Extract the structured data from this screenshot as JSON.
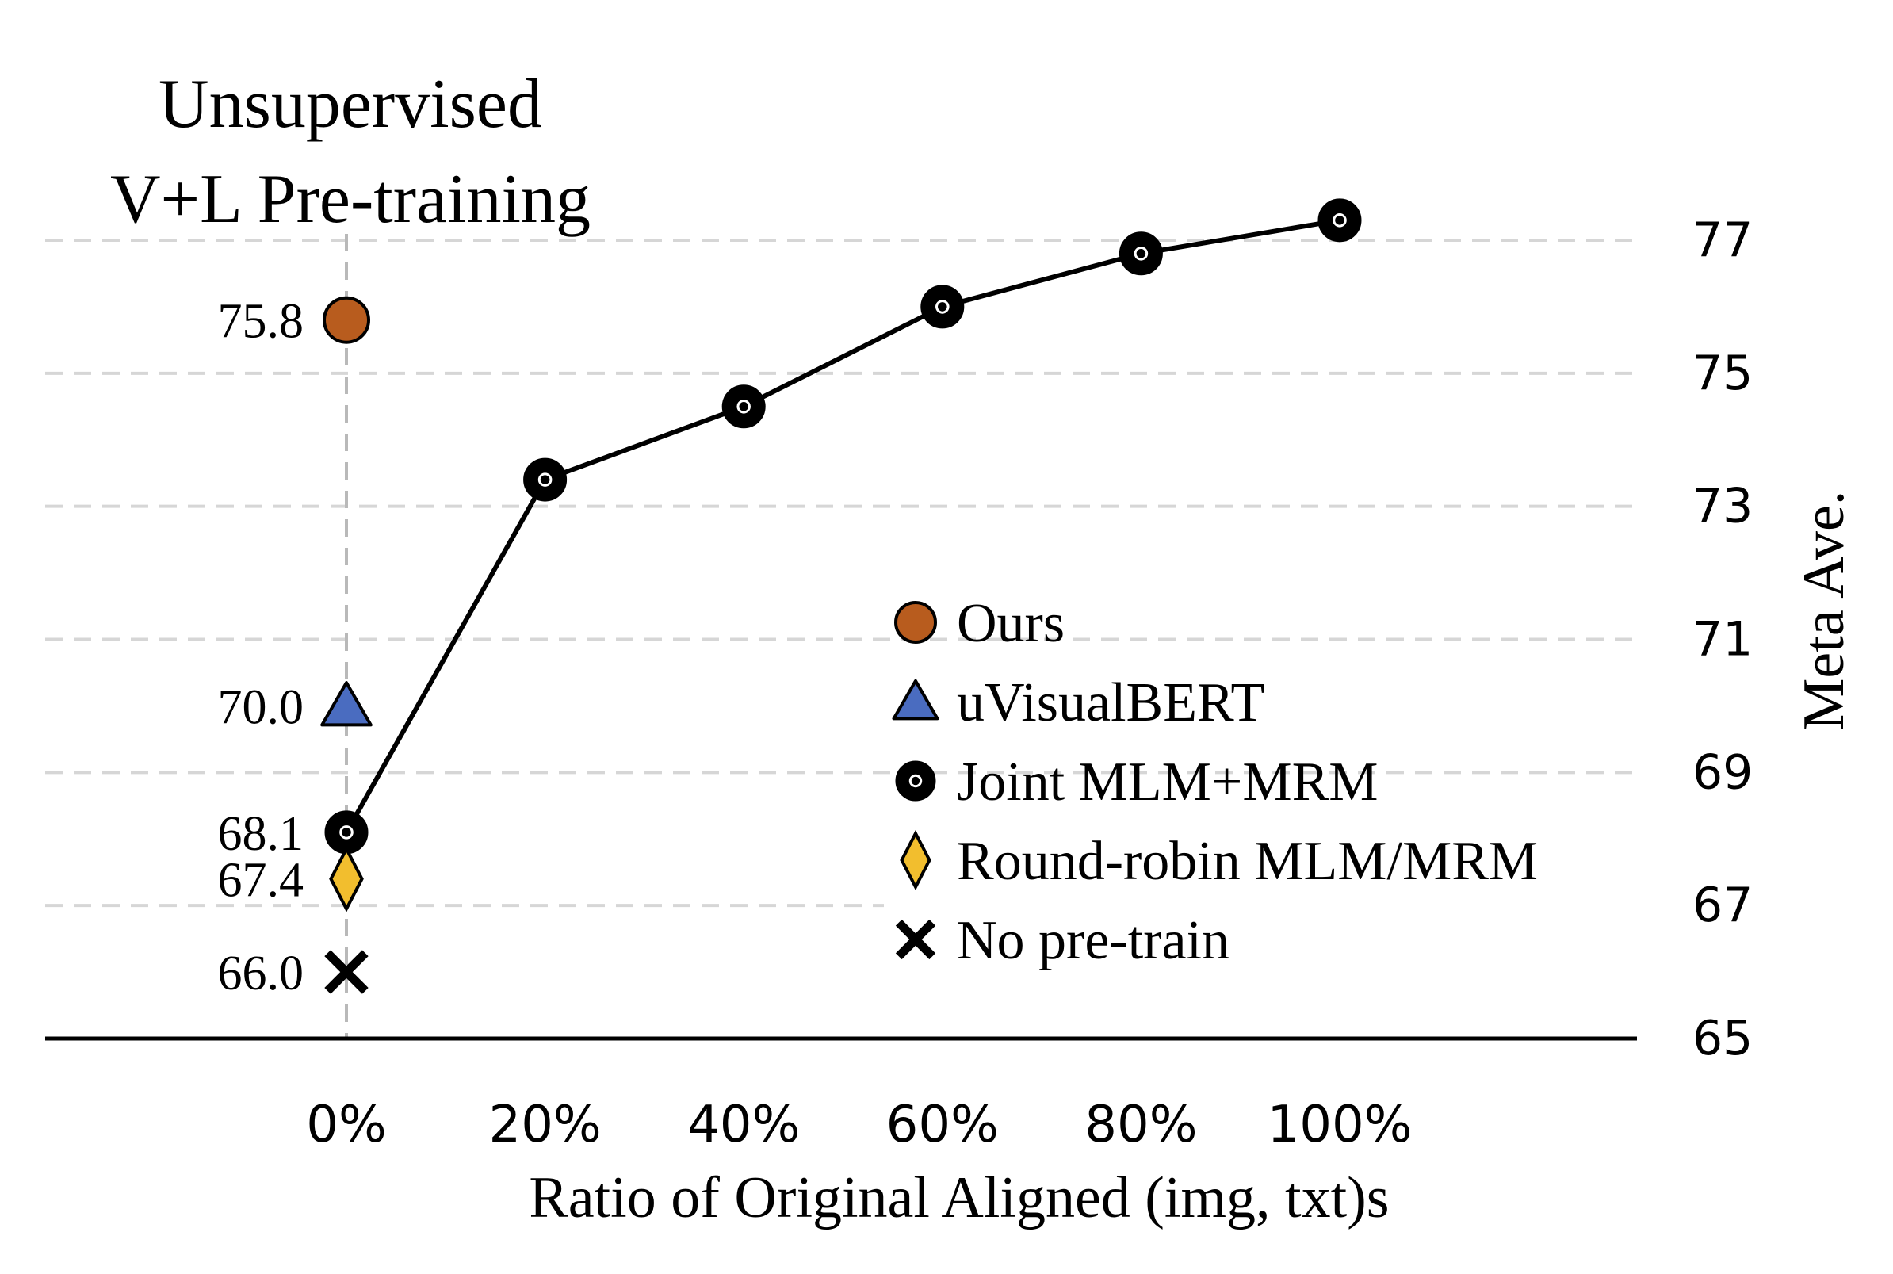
{
  "chart_data": {
    "type": "line",
    "title": "Unsupervised V+L Pre-training",
    "title_lines": [
      "Unsupervised",
      "V+L Pre-training"
    ],
    "xlabel": "Ratio of Original Aligned (img, txt)s",
    "ylabel": "Meta Ave.",
    "x_ticks": [
      "0%",
      "20%",
      "40%",
      "60%",
      "80%",
      "100%"
    ],
    "x_values": [
      0,
      20,
      40,
      60,
      80,
      100
    ],
    "xlim": [
      -30,
      130
    ],
    "y_ticks": [
      65,
      67,
      69,
      71,
      73,
      75,
      77
    ],
    "ylim": [
      65,
      77.5
    ],
    "y_axis_side": "right",
    "grid": "horizontal dashed",
    "legend_position": "center-right",
    "series": [
      {
        "name": "Ours",
        "marker": "circle",
        "color": "#B85C1E",
        "points": [
          {
            "x": 0,
            "y": 75.8
          }
        ],
        "point_labels": [
          "75.8"
        ]
      },
      {
        "name": "uVisualBERT",
        "marker": "triangle",
        "color": "#4A6CC0",
        "points": [
          {
            "x": 0,
            "y": 70.0
          }
        ],
        "point_labels": [
          "70.0"
        ]
      },
      {
        "name": "Joint MLM+MRM",
        "marker": "circle-line",
        "color": "#000000",
        "points": [
          {
            "x": 0,
            "y": 68.1
          },
          {
            "x": 20,
            "y": 73.4
          },
          {
            "x": 40,
            "y": 74.5
          },
          {
            "x": 60,
            "y": 76.0
          },
          {
            "x": 80,
            "y": 76.8
          },
          {
            "x": 100,
            "y": 77.3
          }
        ],
        "point_labels": [
          "68.1",
          "",
          "",
          "",
          "",
          ""
        ]
      },
      {
        "name": "Round-robin MLM/MRM",
        "marker": "diamond",
        "color": "#F2BE2E",
        "points": [
          {
            "x": 0,
            "y": 67.4
          }
        ],
        "point_labels": [
          "67.4"
        ]
      },
      {
        "name": "No pre-train",
        "marker": "x",
        "color": "#000000",
        "points": [
          {
            "x": 0,
            "y": 66.0
          }
        ],
        "point_labels": [
          "66.0"
        ]
      }
    ]
  }
}
